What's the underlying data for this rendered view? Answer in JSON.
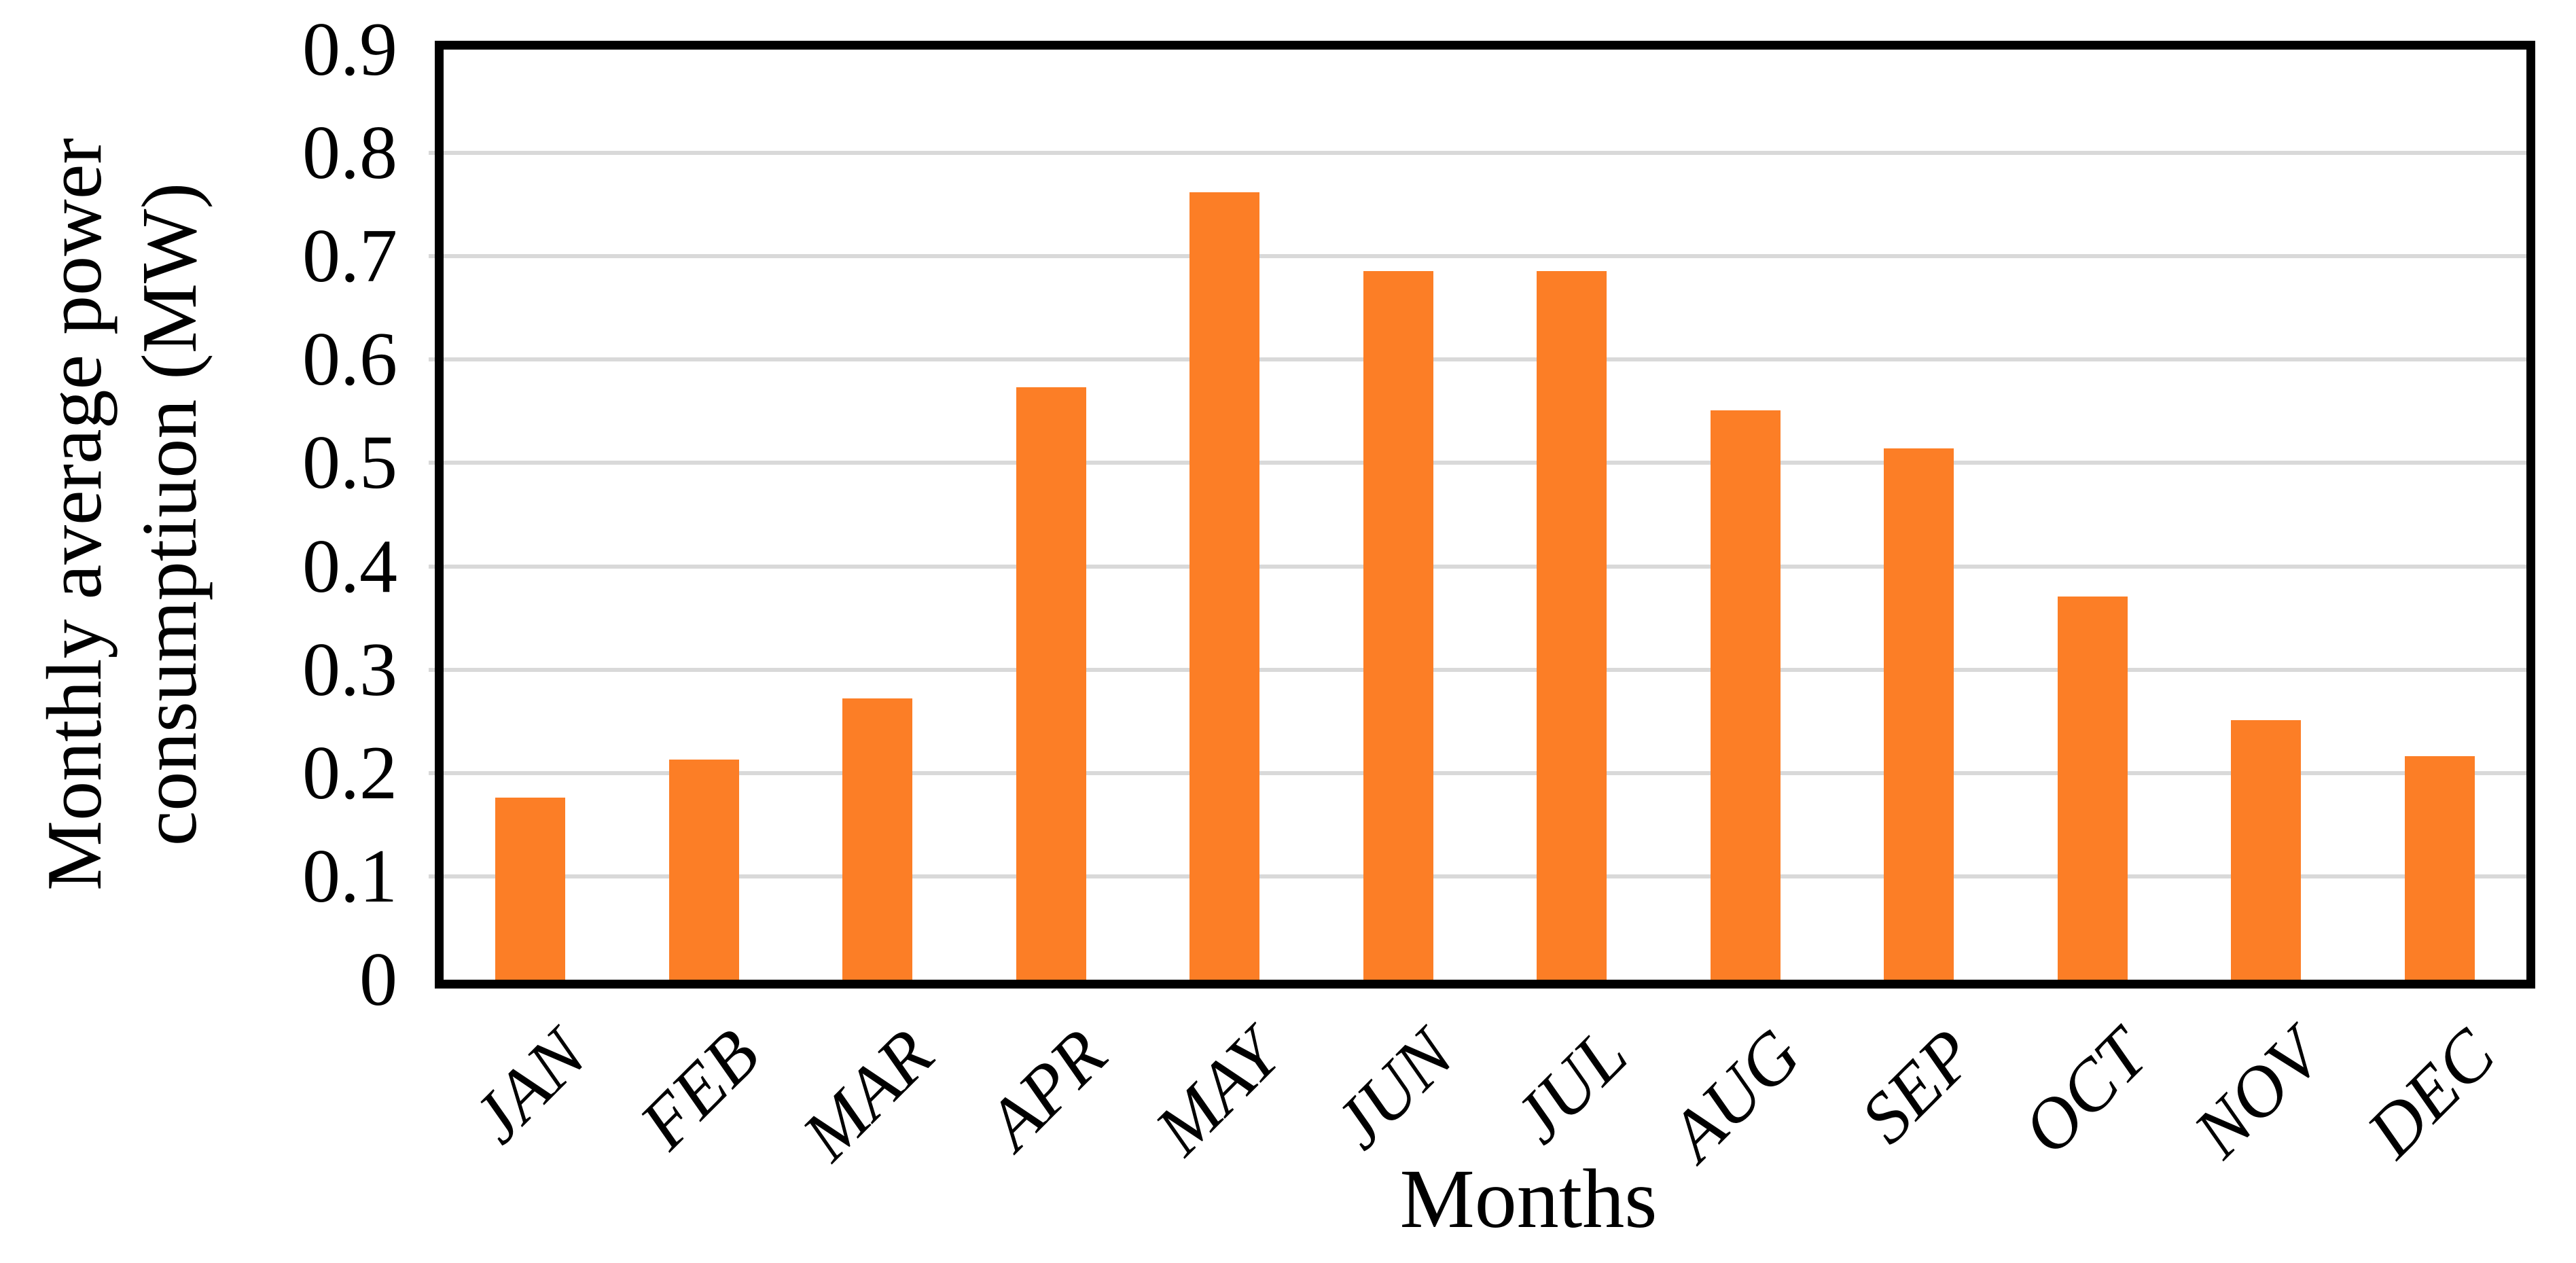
{
  "chart_data": {
    "type": "bar",
    "title": "",
    "categories": [
      "JAN",
      "FEB",
      "MAR",
      "APR",
      "MAY",
      "JUN",
      "JUL",
      "AUG",
      "SEP",
      "OCT",
      "NOV",
      "DEC"
    ],
    "values": [
      0.176,
      0.213,
      0.272,
      0.573,
      0.762,
      0.686,
      0.686,
      0.551,
      0.514,
      0.371,
      0.251,
      0.216
    ],
    "xlabel": "Months",
    "ylabel": "Monthly average power consumptiuon (MW)",
    "ylabel_lines": [
      "Monthly average power",
      "consumptiuon (MW)"
    ],
    "ylim": [
      0,
      0.9
    ],
    "ytick_step": 0.1,
    "ytick_labels": [
      "0.9",
      "0.8",
      "0.7",
      "0.6",
      "0.5",
      "0.4",
      "0.3",
      "0.2",
      "0.1",
      "0"
    ],
    "grid": "horizontal-on",
    "legend_position": "none",
    "bar_color": "#FC7E26",
    "gridline_color": "#D9D9D9",
    "axis_frame_color": "#000000",
    "text_color": "#000000",
    "bar_width_fraction_of_slot": 0.405
  }
}
